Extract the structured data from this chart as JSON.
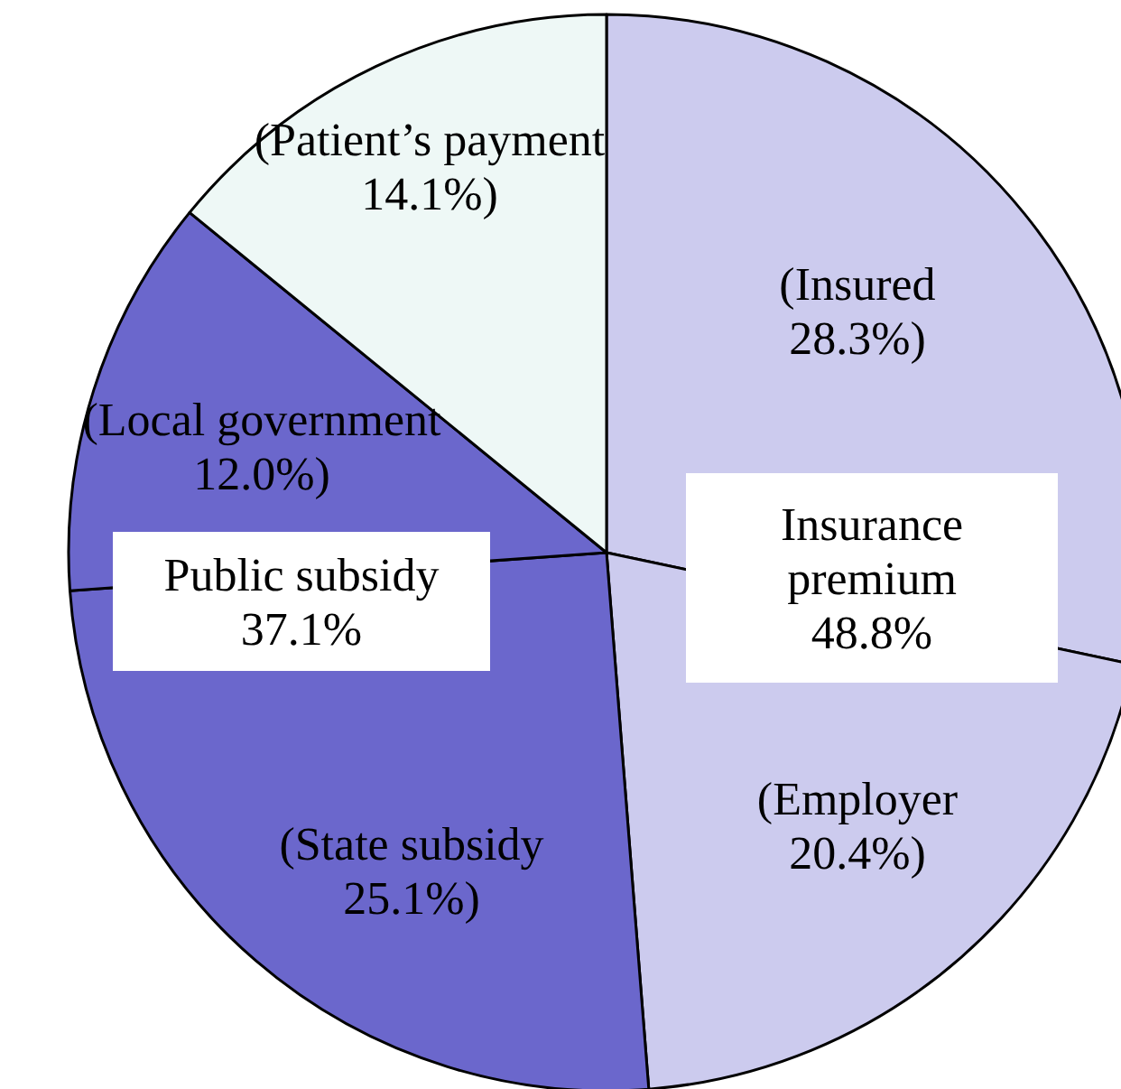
{
  "chart_data": {
    "type": "pie",
    "categories": [
      "(Insured",
      "(Employer",
      "(State subsidy",
      "(Local government",
      "(Patient’s payment"
    ],
    "values": [
      28.3,
      20.4,
      25.1,
      12.0,
      14.1
    ],
    "value_labels": [
      "28.3%)",
      "20.4%)",
      "25.1%)",
      "12.0%)",
      "14.1%)"
    ],
    "colors": [
      "#cccbee",
      "#cccbee",
      "#6b67cc",
      "#6b67cc",
      "#eef8f6"
    ],
    "annotations": [
      "Insurance\npremium\n48.8%",
      "Public subsidy\n37.1%"
    ]
  }
}
